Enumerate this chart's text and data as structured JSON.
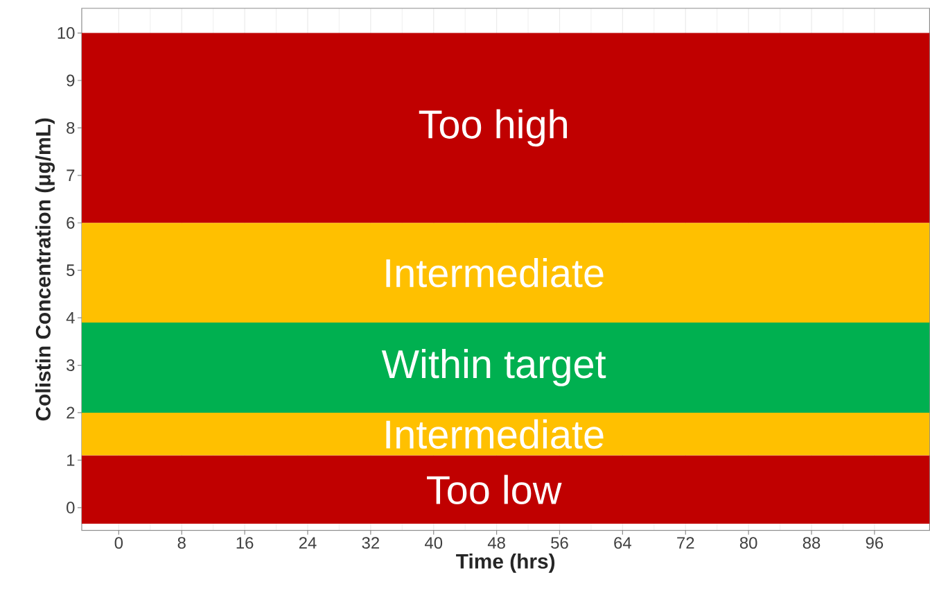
{
  "chart_data": {
    "type": "line",
    "xlabel": "Time (hrs)",
    "ylabel": "Colistin Concentration (μg/mL)",
    "xlim": [
      -4.7,
      103
    ],
    "ylim": [
      -0.48,
      10.52
    ],
    "xticks": [
      0,
      8,
      16,
      24,
      32,
      40,
      48,
      56,
      64,
      72,
      80,
      88,
      96
    ],
    "yticks": [
      0,
      1,
      2,
      3,
      4,
      5,
      6,
      7,
      8,
      9,
      10
    ],
    "grid": "x",
    "bands": [
      {
        "axis": "y",
        "from": -0.34,
        "to": 1.1,
        "label": "Too low",
        "color": "#c00000"
      },
      {
        "axis": "y",
        "from": 1.1,
        "to": 2.0,
        "label": "Intermediate",
        "color": "#ffc000"
      },
      {
        "axis": "y",
        "from": 2.0,
        "to": 3.9,
        "label": "Within target",
        "color": "#00b050"
      },
      {
        "axis": "y",
        "from": 3.9,
        "to": 6.0,
        "label": "Intermediate",
        "color": "#ffc000"
      },
      {
        "axis": "y",
        "from": 6.0,
        "to": 10.0,
        "label": "Too high",
        "color": "#c00000"
      }
    ]
  }
}
